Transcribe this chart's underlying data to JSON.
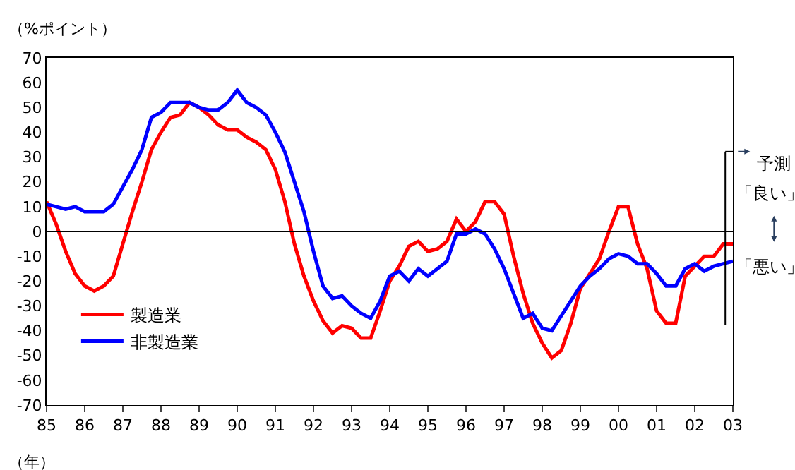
{
  "chart_data": {
    "type": "line",
    "ylabel": "（%ポイント）",
    "xlabel": "（年）",
    "x": [
      1985.0,
      1985.25,
      1985.5,
      1985.75,
      1986.0,
      1986.25,
      1986.5,
      1986.75,
      1987.0,
      1987.25,
      1987.5,
      1987.75,
      1988.0,
      1988.25,
      1988.5,
      1988.75,
      1989.0,
      1989.25,
      1989.5,
      1989.75,
      1990.0,
      1990.25,
      1990.5,
      1990.75,
      1991.0,
      1991.25,
      1991.5,
      1991.75,
      1992.0,
      1992.25,
      1992.5,
      1992.75,
      1993.0,
      1993.25,
      1993.5,
      1993.75,
      1994.0,
      1994.25,
      1994.5,
      1994.75,
      1995.0,
      1995.25,
      1995.5,
      1995.75,
      1996.0,
      1996.25,
      1996.5,
      1996.75,
      1997.0,
      1997.25,
      1997.5,
      1997.75,
      1998.0,
      1998.25,
      1998.5,
      1998.75,
      1999.0,
      1999.25,
      1999.5,
      1999.75,
      2000.0,
      2000.25,
      2000.5,
      2000.75,
      2001.0,
      2001.25,
      2001.5,
      2001.75,
      2002.0,
      2002.25,
      2002.5,
      2002.75,
      2003.0
    ],
    "series": [
      {
        "name": "製造業",
        "color": "#ff0000",
        "values": [
          12,
          3,
          -8,
          -17,
          -22,
          -24,
          -22,
          -18,
          -5,
          8,
          20,
          33,
          40,
          46,
          47,
          52,
          50,
          47,
          43,
          41,
          41,
          38,
          36,
          33,
          25,
          12,
          -5,
          -18,
          -28,
          -36,
          -41,
          -38,
          -39,
          -43,
          -43,
          -32,
          -20,
          -14,
          -6,
          -4,
          -8,
          -7,
          -4,
          5,
          0,
          4,
          12,
          12,
          7,
          -10,
          -25,
          -37,
          -45,
          -51,
          -48,
          -37,
          -23,
          -17,
          -11,
          0,
          10,
          10,
          -5,
          -15,
          -32,
          -37,
          -37,
          -18,
          -14,
          -10,
          -10,
          -5,
          -5
        ]
      },
      {
        "name": "非製造業",
        "color": "#0000ff",
        "values": [
          11,
          10,
          9,
          10,
          8,
          8,
          8,
          11,
          18,
          25,
          33,
          46,
          48,
          52,
          52,
          52,
          50,
          49,
          49,
          52,
          57,
          52,
          50,
          47,
          40,
          32,
          20,
          8,
          -8,
          -22,
          -27,
          -26,
          -30,
          -33,
          -35,
          -28,
          -18,
          -16,
          -20,
          -15,
          -18,
          -15,
          -12,
          -1,
          -1,
          1,
          -1,
          -7,
          -15,
          -25,
          -35,
          -33,
          -39,
          -40,
          -34,
          -28,
          -22,
          -18,
          -15,
          -11,
          -9,
          -10,
          -13,
          -13,
          -17,
          -22,
          -22,
          -15,
          -13,
          -16,
          -14,
          -13,
          -12
        ]
      }
    ],
    "xlim": [
      1985,
      2003
    ],
    "xticks": [
      {
        "value": 1985,
        "label": "85"
      },
      {
        "value": 1986,
        "label": "86"
      },
      {
        "value": 1987,
        "label": "87"
      },
      {
        "value": 1988,
        "label": "88"
      },
      {
        "value": 1989,
        "label": "89"
      },
      {
        "value": 1990,
        "label": "90"
      },
      {
        "value": 1991,
        "label": "91"
      },
      {
        "value": 1992,
        "label": "92"
      },
      {
        "value": 1993,
        "label": "93"
      },
      {
        "value": 1994,
        "label": "94"
      },
      {
        "value": 1995,
        "label": "95"
      },
      {
        "value": 1996,
        "label": "96"
      },
      {
        "value": 1997,
        "label": "97"
      },
      {
        "value": 1998,
        "label": "98"
      },
      {
        "value": 1999,
        "label": "99"
      },
      {
        "value": 2000,
        "label": "00"
      },
      {
        "value": 2001,
        "label": "01"
      },
      {
        "value": 2002,
        "label": "02"
      },
      {
        "value": 2003,
        "label": "03"
      }
    ],
    "ylim": [
      -70,
      70
    ],
    "yticks": [
      -70,
      -60,
      -50,
      -40,
      -30,
      -20,
      -10,
      0,
      10,
      20,
      30,
      40,
      50,
      60,
      70
    ],
    "ref_lines": [
      {
        "axis": "y",
        "value": 0,
        "color": "#000000"
      },
      {
        "axis": "x",
        "value": 2002.8,
        "label": "予測",
        "color": "#000000"
      }
    ],
    "annotations": [
      "「良い」",
      "「悪い」"
    ],
    "legend": "bottom left",
    "marker": "none",
    "line_style": "solid"
  }
}
